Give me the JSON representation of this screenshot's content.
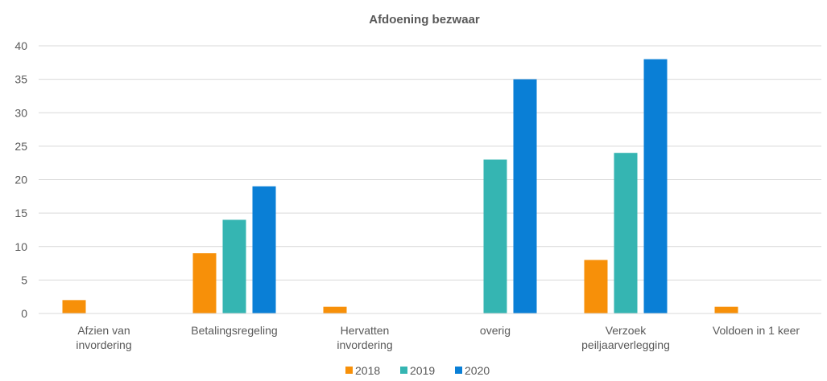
{
  "chart_data": {
    "type": "bar",
    "title": "Afdoening bezwaar",
    "categories": [
      [
        "Afzien van",
        "invordering"
      ],
      [
        "Betalingsregeling"
      ],
      [
        "Hervatten",
        "invordering"
      ],
      [
        "overig"
      ],
      [
        "Verzoek",
        "peiljaarverlegging"
      ],
      [
        "Voldoen in 1 keer"
      ]
    ],
    "series": [
      {
        "name": "2018",
        "color": "#f79009",
        "values": [
          2,
          9,
          1,
          0,
          8,
          1
        ]
      },
      {
        "name": "2019",
        "color": "#35b5b2",
        "values": [
          0,
          14,
          0,
          23,
          24,
          0
        ]
      },
      {
        "name": "2020",
        "color": "#0a7fd6",
        "values": [
          0,
          19,
          0,
          35,
          38,
          0
        ]
      }
    ],
    "ylim": [
      0,
      40
    ],
    "yticks": [
      0,
      5,
      10,
      15,
      20,
      25,
      30,
      35,
      40
    ],
    "grid": true,
    "legend": "bottom"
  }
}
